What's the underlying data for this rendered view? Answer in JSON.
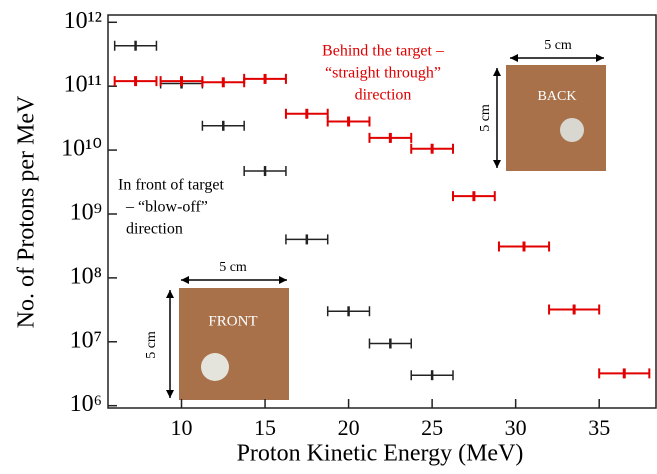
{
  "chart_data": {
    "type": "scatter",
    "x_label": "Proton Kinetic Energy (MeV)",
    "y_label": "No. of Protons per MeV",
    "yscale": "log",
    "xlim": [
      5.6,
      38.4
    ],
    "ylim": [
      920000,
      1300000000000
    ],
    "xticks": [
      10,
      15,
      20,
      25,
      30,
      35
    ],
    "yticks": [
      {
        "value": 1000000,
        "label": "10⁶"
      },
      {
        "value": 10000000,
        "label": "10⁷"
      },
      {
        "value": 100000000,
        "label": "10⁸"
      },
      {
        "value": 1000000000,
        "label": "10⁹"
      },
      {
        "value": 10000000000,
        "label": "10¹⁰"
      },
      {
        "value": 100000000000,
        "label": "10¹¹"
      },
      {
        "value": 1000000000000,
        "label": "10¹²"
      }
    ],
    "series": [
      {
        "color": "#222222",
        "x": [
          7.25,
          10,
          12.5,
          15,
          17.5,
          20,
          22.5,
          25
        ],
        "xerr": [
          1.25,
          1.25,
          1.25,
          1.25,
          1.25,
          1.25,
          1.25,
          1.25
        ],
        "values": [
          430000000000,
          110000000000,
          24000000000,
          4700000000,
          400000000,
          30000000,
          9400000,
          3000000
        ]
      },
      {
        "color": "#e00000",
        "x": [
          7.25,
          10,
          12.5,
          15,
          17.5,
          20,
          22.5,
          25,
          27.5,
          30.5,
          33.5,
          36.5
        ],
        "xerr": [
          1.25,
          1.25,
          1.25,
          1.25,
          1.25,
          1.25,
          1.25,
          1.25,
          1.25,
          1.5,
          1.5,
          1.5
        ],
        "values": [
          120000000000,
          120000000000,
          115000000000,
          130000000000,
          37000000000,
          28000000000,
          15500000000,
          10500000000,
          1900000000,
          310000000,
          32000000,
          3200000
        ]
      }
    ],
    "annotations": {
      "back_text": [
        "Behind the target –",
        "“straight through”",
        "direction"
      ],
      "front_text": [
        "In front of target",
        "– “blow-off”",
        "direction"
      ],
      "back_width": "5 cm",
      "back_height": "5 cm",
      "back_label": "BACK",
      "front_width": "5 cm",
      "front_height": "5 cm",
      "front_label": "FRONT"
    }
  }
}
